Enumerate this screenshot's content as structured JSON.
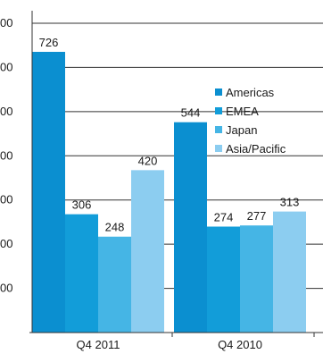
{
  "chart_data": {
    "type": "bar",
    "categories": [
      "Q4 2011",
      "Q4 2010"
    ],
    "series": [
      {
        "name": "Americas",
        "values": [
          726,
          544
        ],
        "color": "#0b8fd0"
      },
      {
        "name": "EMEA",
        "values": [
          306,
          274
        ],
        "color": "#129dd9"
      },
      {
        "name": "Japan",
        "values": [
          248,
          277
        ],
        "color": "#45b5e5"
      },
      {
        "name": "Asia/Pacific",
        "values": [
          420,
          313
        ],
        "color": "#8ccdf0"
      }
    ],
    "y_tick_labels": [
      "00",
      "00",
      "00",
      "00",
      "00",
      "00",
      "00"
    ],
    "ylim": [
      0,
      800
    ],
    "grid": true,
    "legend": "right, inside plot"
  }
}
